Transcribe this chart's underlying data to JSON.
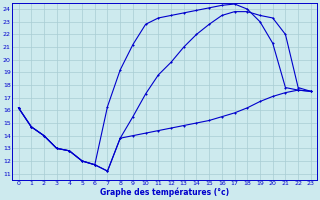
{
  "title": "Graphe des températures (°c)",
  "bg_color": "#cdeaee",
  "line_color": "#0000cc",
  "grid_color": "#a8cdd4",
  "xlim": [
    -0.5,
    23.5
  ],
  "ylim": [
    10.5,
    24.5
  ],
  "xticks": [
    0,
    1,
    2,
    3,
    4,
    5,
    6,
    7,
    8,
    9,
    10,
    11,
    12,
    13,
    14,
    15,
    16,
    17,
    18,
    19,
    20,
    21,
    22,
    23
  ],
  "yticks": [
    11,
    12,
    13,
    14,
    15,
    16,
    17,
    18,
    19,
    20,
    21,
    22,
    23,
    24
  ],
  "line1_x": [
    0,
    1,
    2,
    3,
    4,
    5,
    6,
    7,
    8,
    9,
    10,
    11,
    12,
    13,
    14,
    15,
    16,
    17,
    18,
    19,
    20,
    21,
    22,
    23
  ],
  "line1_y": [
    16.2,
    14.7,
    14.0,
    13.0,
    12.8,
    12.0,
    11.7,
    11.2,
    13.8,
    14.0,
    14.2,
    14.4,
    14.6,
    14.8,
    15.0,
    15.2,
    15.5,
    15.8,
    16.2,
    16.7,
    17.1,
    17.4,
    17.6,
    17.5
  ],
  "line2_x": [
    0,
    1,
    2,
    3,
    4,
    5,
    6,
    7,
    8,
    9,
    10,
    11,
    12,
    13,
    14,
    15,
    16,
    17,
    18,
    19,
    20,
    21,
    22,
    23
  ],
  "line2_y": [
    16.2,
    14.7,
    14.0,
    13.0,
    12.8,
    12.0,
    11.7,
    16.3,
    19.2,
    21.2,
    22.8,
    23.3,
    23.5,
    23.7,
    23.9,
    24.1,
    24.3,
    24.4,
    24.0,
    23.0,
    21.3,
    17.8,
    17.6,
    17.5
  ],
  "line3_x": [
    0,
    1,
    2,
    3,
    4,
    5,
    6,
    7,
    8,
    9,
    10,
    11,
    12,
    13,
    14,
    15,
    16,
    17,
    18,
    19,
    20,
    21,
    22,
    23
  ],
  "line3_y": [
    16.2,
    14.7,
    14.0,
    13.0,
    12.8,
    12.0,
    11.7,
    11.2,
    13.8,
    15.5,
    17.3,
    18.8,
    19.8,
    21.0,
    22.0,
    22.8,
    23.5,
    23.8,
    23.8,
    23.5,
    23.3,
    22.0,
    17.8,
    17.5
  ]
}
